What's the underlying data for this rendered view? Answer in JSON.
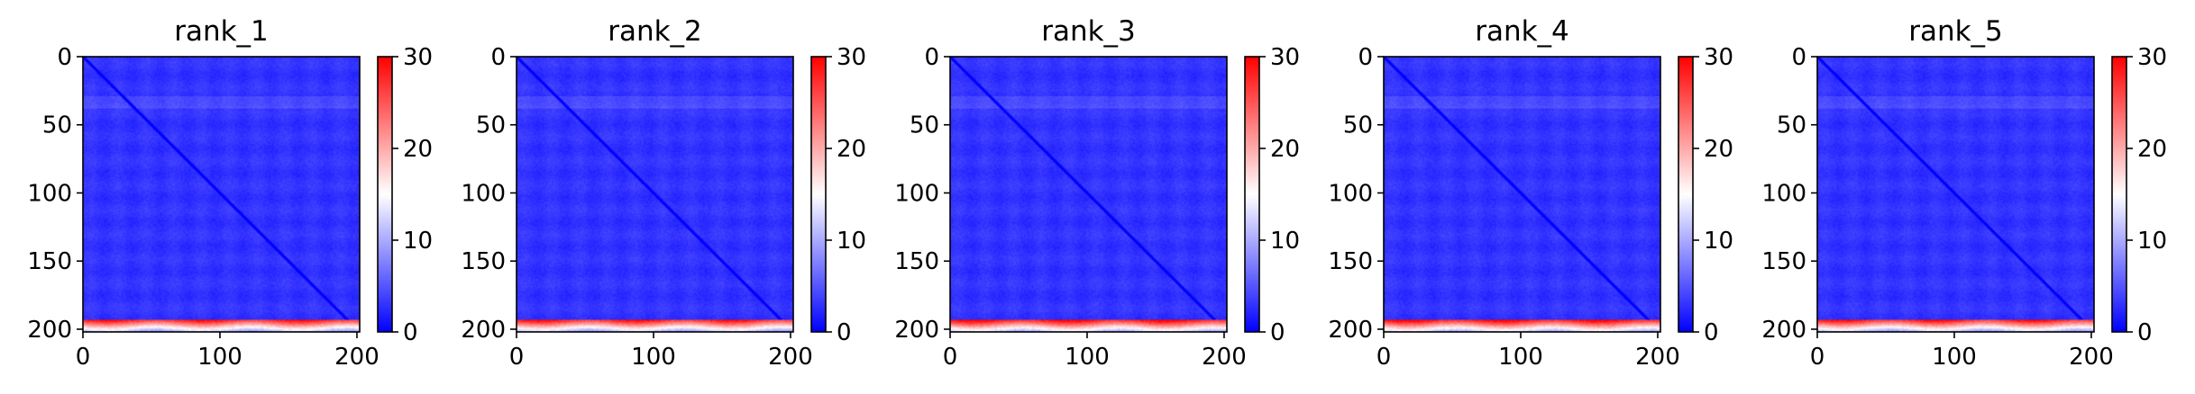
{
  "chart_data": [
    {
      "type": "heatmap",
      "title": "rank_1",
      "x_ticks": [
        0,
        100,
        200
      ],
      "y_ticks": [
        0,
        50,
        100,
        150,
        200
      ],
      "xlim": [
        0,
        202
      ],
      "ylim": [
        202,
        0
      ],
      "matrix_size": 202,
      "colorbar": {
        "range": [
          0,
          30
        ],
        "ticks": [
          0,
          10,
          20,
          30
        ],
        "colormap": "bwr"
      },
      "background_value": 3,
      "diagonal_value": 0,
      "bottom_band_rows": [
        193,
        201
      ],
      "bottom_band_value": 28,
      "grid": false,
      "legend": "none"
    },
    {
      "type": "heatmap",
      "title": "rank_2",
      "x_ticks": [
        0,
        100,
        200
      ],
      "y_ticks": [
        0,
        50,
        100,
        150,
        200
      ],
      "xlim": [
        0,
        202
      ],
      "ylim": [
        202,
        0
      ],
      "matrix_size": 202,
      "colorbar": {
        "range": [
          0,
          30
        ],
        "ticks": [
          0,
          10,
          20,
          30
        ],
        "colormap": "bwr"
      },
      "background_value": 3,
      "diagonal_value": 0,
      "bottom_band_rows": [
        193,
        201
      ],
      "bottom_band_value": 28,
      "grid": false,
      "legend": "none"
    },
    {
      "type": "heatmap",
      "title": "rank_3",
      "x_ticks": [
        0,
        100,
        200
      ],
      "y_ticks": [
        0,
        50,
        100,
        150,
        200
      ],
      "xlim": [
        0,
        202
      ],
      "ylim": [
        202,
        0
      ],
      "matrix_size": 202,
      "colorbar": {
        "range": [
          0,
          30
        ],
        "ticks": [
          0,
          10,
          20,
          30
        ],
        "colormap": "bwr"
      },
      "background_value": 3,
      "diagonal_value": 0,
      "bottom_band_rows": [
        193,
        201
      ],
      "bottom_band_value": 29,
      "grid": false,
      "legend": "none"
    },
    {
      "type": "heatmap",
      "title": "rank_4",
      "x_ticks": [
        0,
        100,
        200
      ],
      "y_ticks": [
        0,
        50,
        100,
        150,
        200
      ],
      "xlim": [
        0,
        202
      ],
      "ylim": [
        202,
        0
      ],
      "matrix_size": 202,
      "colorbar": {
        "range": [
          0,
          30
        ],
        "ticks": [
          0,
          10,
          20,
          30
        ],
        "colormap": "bwr"
      },
      "background_value": 3,
      "diagonal_value": 0,
      "bottom_band_rows": [
        193,
        201
      ],
      "bottom_band_value": 29,
      "grid": false,
      "legend": "none"
    },
    {
      "type": "heatmap",
      "title": "rank_5",
      "x_ticks": [
        0,
        100,
        200
      ],
      "y_ticks": [
        0,
        50,
        100,
        150,
        200
      ],
      "xlim": [
        0,
        202
      ],
      "ylim": [
        202,
        0
      ],
      "matrix_size": 202,
      "colorbar": {
        "range": [
          0,
          30
        ],
        "ticks": [
          0,
          10,
          20,
          30
        ],
        "colormap": "bwr"
      },
      "background_value": 3,
      "diagonal_value": 0,
      "bottom_band_rows": [
        193,
        201
      ],
      "bottom_band_value": 28,
      "grid": false,
      "legend": "none"
    }
  ],
  "colors": {
    "low": "#0000ff",
    "mid": "#ffffff",
    "high": "#ff0000"
  }
}
